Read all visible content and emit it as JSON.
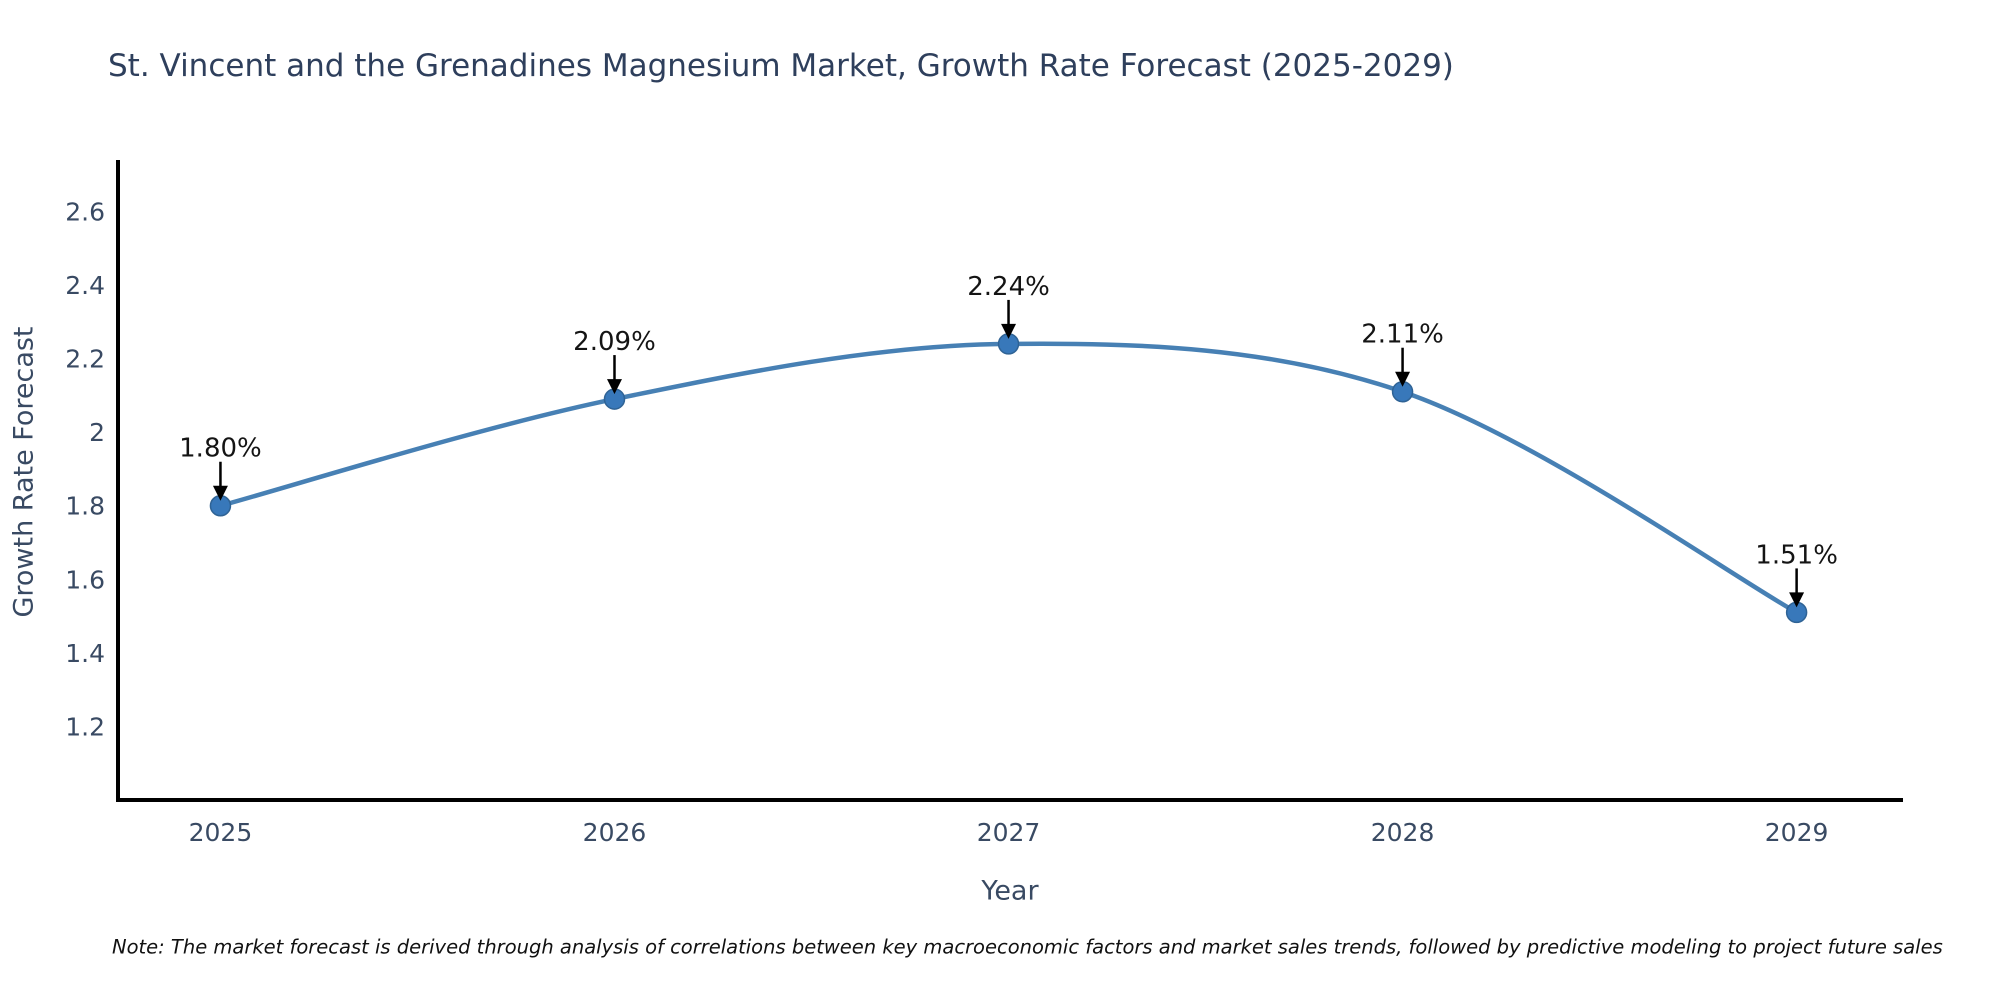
{
  "title": "St. Vincent and the Grenadines Magnesium Market, Growth Rate Forecast (2025-2029)",
  "note": "Note: The market forecast is derived through analysis of correlations between key macroeconomic factors and market sales trends, followed by predictive modeling to project future sales",
  "chart_data": {
    "type": "line",
    "title": "St. Vincent and the Grenadines Magnesium Market, Growth Rate Forecast (2025-2029)",
    "xlabel": "Year",
    "ylabel": "Growth Rate Forecast",
    "x": [
      2025,
      2026,
      2027,
      2028,
      2029
    ],
    "values": [
      1.8,
      2.09,
      2.24,
      2.11,
      1.51
    ],
    "point_labels": [
      "1.80%",
      "2.09%",
      "2.24%",
      "2.11%",
      "1.51%"
    ],
    "x_tick_labels": [
      "2025",
      "2026",
      "2027",
      "2028",
      "2029"
    ],
    "y_ticks": [
      2.6,
      2.4,
      2.2,
      2,
      1.8,
      1.6,
      1.4,
      1.2
    ],
    "y_tick_labels": [
      "2.6",
      "2.4",
      "2.2",
      "2",
      "1.8",
      "1.6",
      "1.4",
      "1.2"
    ],
    "xlim": [
      2024.74,
      2029.27
    ],
    "ylim": [
      1.0,
      2.74
    ],
    "grid": false,
    "legend": "none",
    "colors": {
      "line": "#4780b4",
      "marker_fill": "#3878ba",
      "marker_edge": "#2f6395",
      "annotation_text": "#141414",
      "arrow": "#000000",
      "axis_spine": "#000000",
      "tick_text": "#394a63",
      "title_text": "#2e3f5c"
    }
  }
}
